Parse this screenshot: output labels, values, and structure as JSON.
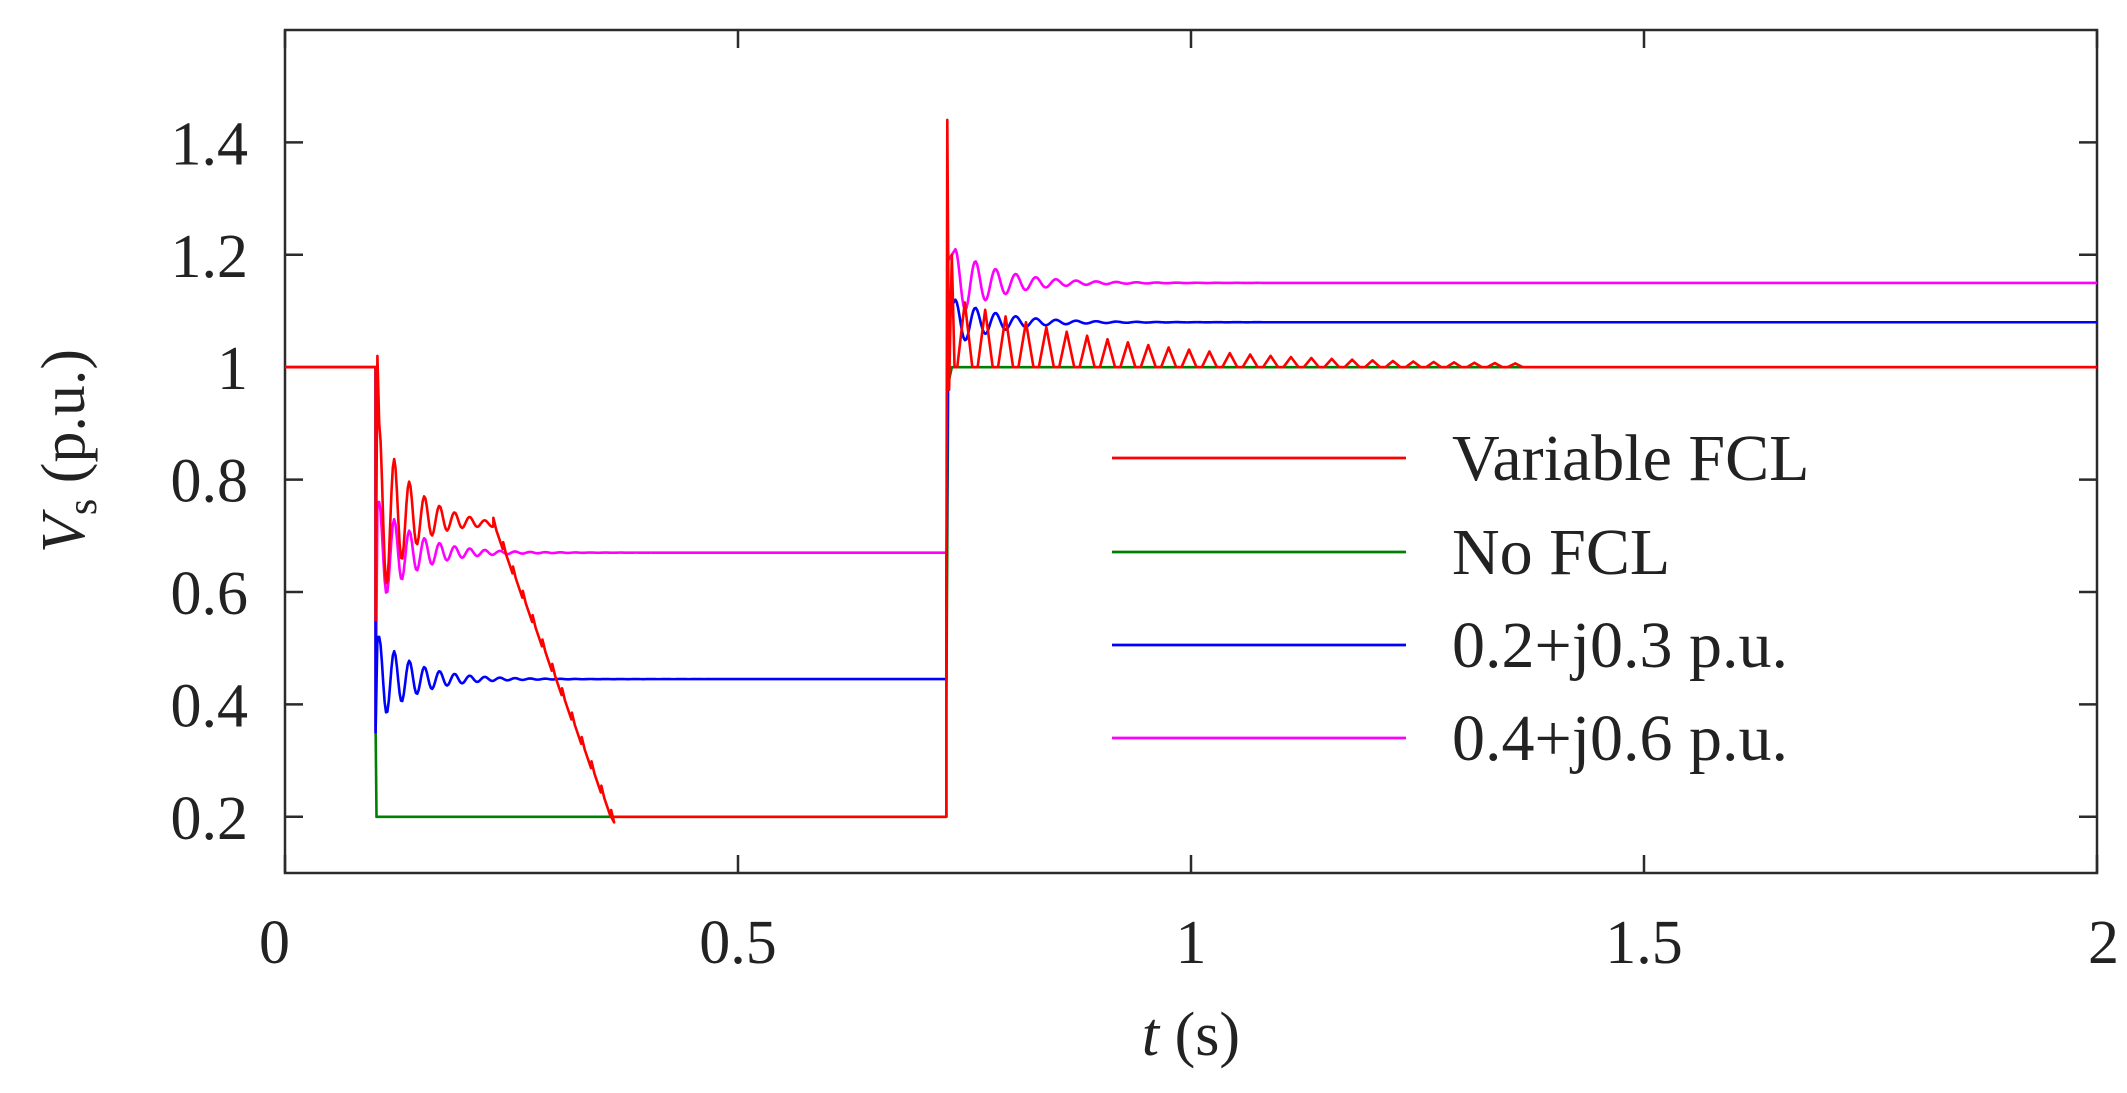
{
  "chart_data": {
    "type": "line",
    "title": "",
    "xlabel": {
      "var": "t",
      "unit": " (s)"
    },
    "ylabel": {
      "var": "V",
      "sub": "s",
      "unit": " (p.u.)"
    },
    "xlim": [
      0,
      2
    ],
    "ylim": [
      0.1,
      1.6
    ],
    "xticks": [
      0,
      0.5,
      1,
      1.5,
      2
    ],
    "xtick_labels": [
      "0",
      "0.5",
      "1",
      "1.5",
      "2"
    ],
    "yticks": [
      0.2,
      0.4,
      0.6,
      0.8,
      1.0,
      1.2,
      1.4
    ],
    "ytick_labels": [
      "0.2",
      "0.4",
      "0.6",
      "0.8",
      "1",
      "1.2",
      "1.4"
    ],
    "grid": false,
    "legend_position": "right",
    "fault_start_s": 0.1,
    "fault_clear_s": 0.73,
    "series": [
      {
        "name": "Variable FCL",
        "color": "#ff0000",
        "pre_fault": 1.0,
        "fault_spike": 1.02,
        "fault_plateau": 0.72,
        "fault_plateau_end_s": 0.23,
        "fault_floor": 0.2,
        "fault_floor_reached_s": 0.36,
        "post_spike_high": 1.44,
        "post_spike_low": 0.96,
        "post_steady": 1.0,
        "post_ringing_end_s": 1.35
      },
      {
        "name": "No FCL",
        "color": "#008000",
        "pre_fault": 1.0,
        "fault_value": 0.2,
        "post_steady": 1.0
      },
      {
        "name": "0.2+j0.3 p.u.",
        "color": "#0000ff",
        "pre_fault": 1.0,
        "fault_initial": 0.52,
        "fault_steady": 0.445,
        "post_peak": 1.12,
        "post_steady": 1.08
      },
      {
        "name": "0.4+j0.6 p.u.",
        "color": "#ff00ff",
        "pre_fault": 1.0,
        "fault_initial": 0.76,
        "fault_steady": 0.67,
        "post_peak": 1.21,
        "post_steady": 1.15
      }
    ]
  }
}
